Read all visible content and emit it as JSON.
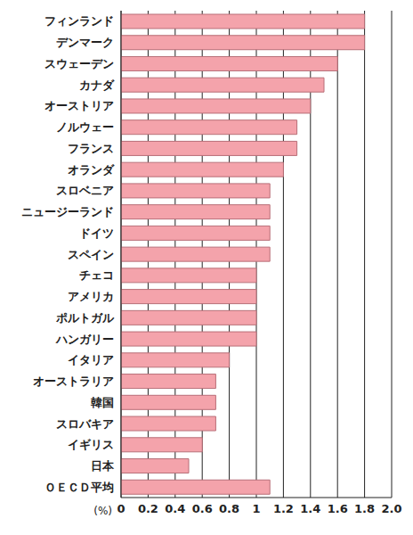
{
  "chart_data": {
    "type": "bar",
    "orientation": "horizontal",
    "categories": [
      "フィンランド",
      "デンマーク",
      "スウェーデン",
      "カナダ",
      "オーストリア",
      "ノルウェー",
      "フランス",
      "オランダ",
      "スロベニア",
      "ニュージーランド",
      "ドイツ",
      "スペイン",
      "チェコ",
      "アメリカ",
      "ポルトガル",
      "ハンガリー",
      "イタリア",
      "オーストラリア",
      "韓国",
      "スロバキア",
      "イギリス",
      "日本",
      "ＯＥＣＤ平均"
    ],
    "values": [
      1.8,
      1.8,
      1.6,
      1.5,
      1.4,
      1.3,
      1.3,
      1.2,
      1.1,
      1.1,
      1.1,
      1.1,
      1.0,
      1.0,
      1.0,
      1.0,
      0.8,
      0.7,
      0.7,
      0.7,
      0.6,
      0.5,
      1.1
    ],
    "color": "#f4a3ab",
    "xlabel": "(%)",
    "xlim": [
      0,
      2
    ],
    "xticks": [
      0,
      0.2,
      0.4,
      0.6,
      0.8,
      1,
      1.2,
      1.4,
      1.6,
      1.8,
      {
        "value": 2,
        "label": "2.0"
      }
    ],
    "grid": true
  }
}
